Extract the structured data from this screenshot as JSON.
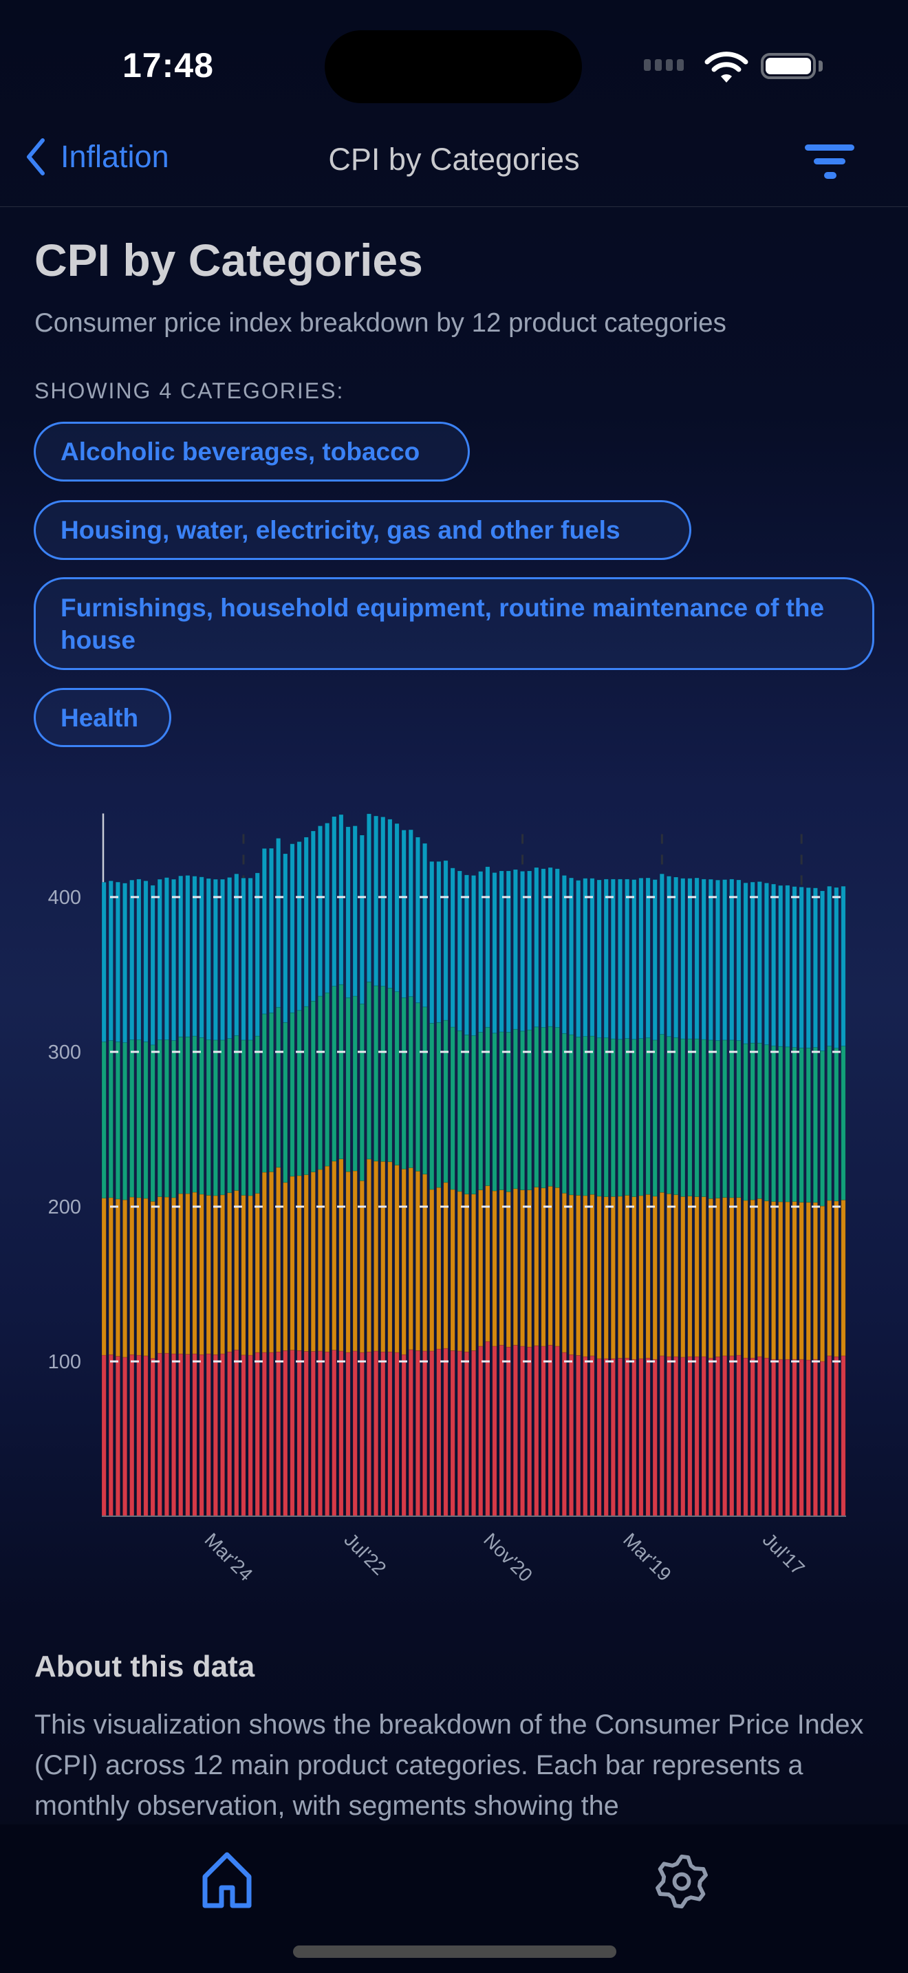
{
  "status_bar": {
    "time": "17:48"
  },
  "nav": {
    "back_label": "Inflation",
    "title": "CPI by Categories"
  },
  "header": {
    "title": "CPI by Categories",
    "subtitle": "Consumer price index breakdown by 12 product categories",
    "showing_label": "SHOWING 4 CATEGORIES:"
  },
  "about": {
    "heading": "About this data",
    "text": "This visualization shows the breakdown of the Consumer Price Index (CPI) across 12 main product categories. Each bar represents a monthly observation, with segments showing the"
  },
  "tabs": [
    {
      "icon": "home-icon",
      "active": true
    },
    {
      "icon": "gear-icon",
      "active": false
    }
  ],
  "colors": {
    "accent": "#3b82f6",
    "text_muted": "#9aa3b5"
  },
  "chart_data": {
    "type": "bar",
    "stacked": true,
    "order": "newest-first",
    "ylim": [
      0,
      454
    ],
    "yticks": [
      "100",
      "200",
      "300",
      "400"
    ],
    "ytick_values": [
      100,
      200,
      300,
      400
    ],
    "grid": true,
    "xticks": [
      {
        "label": "Mar'24",
        "index": 20
      },
      {
        "label": "Jul'22",
        "index": 40
      },
      {
        "label": "Nov'20",
        "index": 60
      },
      {
        "label": "Mar'19",
        "index": 80
      },
      {
        "label": "Jul'17",
        "index": 100
      }
    ],
    "series": [
      {
        "name": "Alcoholic beverages, tobacco",
        "color": "#d63a48",
        "values": [
          104.0,
          104.4,
          103.3,
          102.7,
          104.4,
          104.0,
          103.6,
          102.0,
          105.3,
          105.3,
          104.9,
          104.9,
          104.6,
          104.9,
          104.4,
          104.9,
          104.4,
          104.9,
          106.2,
          107.4,
          104.1,
          104.0,
          105.8,
          105.8,
          105.8,
          106.2,
          107.0,
          107.3,
          107.0,
          106.5,
          106.5,
          106.7,
          106.2,
          107.3,
          106.7,
          105.8,
          106.7,
          105.8,
          106.2,
          106.7,
          106.2,
          106.2,
          105.8,
          104.4,
          107.6,
          107.0,
          106.7,
          106.7,
          108.0,
          108.4,
          107.0,
          106.7,
          106.2,
          107.0,
          109.8,
          112.9,
          109.8,
          110.5,
          109.3,
          110.5,
          109.8,
          109.3,
          110.2,
          109.8,
          110.5,
          109.8,
          105.8,
          104.4,
          103.9,
          103.1,
          103.6,
          101.8,
          101.8,
          101.8,
          102.1,
          102.2,
          101.3,
          101.8,
          102.2,
          101.3,
          103.6,
          103.1,
          103.1,
          102.7,
          103.1,
          103.1,
          103.1,
          102.2,
          103.0,
          103.6,
          103.6,
          104.0,
          102.2,
          102.2,
          103.1,
          102.2,
          101.3,
          101.3,
          101.3,
          101.3,
          101.3,
          100.9,
          101.3,
          100.0,
          103.6,
          103.1,
          103.6
        ]
      },
      {
        "name": "Housing, water, electricity, gas and other fuels",
        "color": "#d4880f",
        "values": [
          101.5,
          101.4,
          101.6,
          101.7,
          101.8,
          101.8,
          101.7,
          101.4,
          101.1,
          100.9,
          100.9,
          103.5,
          103.8,
          104.4,
          103.6,
          102.4,
          102.7,
          102.7,
          102.8,
          103.0,
          103.2,
          103.1,
          102.8,
          116.4,
          116.7,
          119.2,
          108.6,
          112.3,
          113.0,
          114.1,
          115.9,
          117.3,
          120.0,
          122.1,
          124.1,
          116.8,
          116.4,
          110.9,
          124.5,
          122.7,
          123.0,
          122.8,
          121.0,
          119.9,
          117.5,
          115.9,
          114.3,
          104.4,
          104.4,
          107.2,
          104.1,
          103.1,
          101.9,
          101.1,
          101.0,
          100.6,
          100.4,
          100.3,
          100.3,
          101.1,
          101.0,
          101.5,
          102.4,
          102.3,
          102.7,
          102.5,
          102.9,
          103.2,
          103.4,
          104.0,
          104.3,
          104.9,
          104.6,
          104.7,
          104.6,
          105.1,
          105.1,
          105.3,
          105.7,
          105.4,
          105.6,
          105.2,
          104.6,
          103.8,
          103.7,
          103.3,
          103.3,
          103.0,
          102.5,
          102.3,
          102.2,
          101.9,
          101.8,
          102.2,
          102.1,
          101.5,
          102.0,
          101.8,
          101.8,
          102.0,
          101.5,
          101.9,
          101.4,
          100.4,
          100.4,
          100.5,
          100.7
        ]
      },
      {
        "name": "Furnishings, household equipment, routine maintenance of the house",
        "color": "#12a07a",
        "values": [
          101.0,
          101.5,
          101.6,
          101.6,
          101.6,
          102.0,
          101.2,
          101.1,
          101.4,
          101.6,
          101.5,
          101.3,
          101.3,
          100.9,
          101.2,
          100.5,
          100.5,
          100.0,
          99.6,
          100.1,
          100.3,
          100.5,
          101.6,
          102.3,
          102.7,
          103.4,
          103.4,
          105.7,
          106.8,
          108.7,
          110.4,
          112.0,
          112.0,
          113.0,
          112.7,
          112.4,
          112.9,
          114.3,
          114.5,
          113.3,
          113.2,
          112.2,
          112.1,
          110.7,
          110.6,
          108.8,
          108.0,
          107.4,
          106.6,
          104.8,
          104.9,
          103.9,
          102.9,
          102.4,
          101.9,
          102.4,
          101.9,
          102.1,
          103.1,
          103.0,
          102.6,
          103.4,
          103.5,
          103.7,
          103.2,
          103.5,
          103.2,
          103.5,
          102.3,
          102.9,
          102.3,
          102.4,
          102.7,
          101.9,
          101.4,
          101.3,
          101.7,
          101.5,
          101.2,
          100.9,
          102.1,
          101.6,
          101.5,
          101.9,
          101.6,
          102.0,
          101.6,
          102.4,
          101.8,
          101.7,
          101.8,
          101.4,
          101.3,
          101.3,
          100.5,
          100.9,
          100.5,
          100.4,
          100.1,
          99.6,
          99.7,
          99.7,
          100.2,
          100.2,
          99.7,
          98.8,
          99.4
        ]
      },
      {
        "name": "Health",
        "color": "#0a9cc0",
        "values": [
          103.1,
          103.2,
          103.2,
          103.0,
          103.2,
          103.8,
          104.0,
          103.1,
          103.7,
          104.8,
          104.2,
          104.0,
          104.3,
          103.3,
          103.8,
          104.2,
          103.9,
          103.9,
          104.1,
          104.5,
          104.7,
          104.7,
          105.4,
          106.9,
          106.3,
          109.2,
          109.0,
          109.1,
          109.0,
          109.4,
          109.9,
          110.0,
          109.6,
          109.6,
          109.8,
          110.4,
          110.0,
          109.0,
          108.6,
          109.7,
          109.4,
          109.1,
          108.6,
          108.3,
          107.8,
          107.0,
          105.7,
          104.5,
          104.0,
          103.2,
          102.8,
          103.2,
          103.3,
          103.5,
          103.9,
          103.7,
          103.7,
          104.0,
          104.2,
          103.2,
          103.3,
          102.7,
          103.0,
          102.5,
          102.7,
          102.5,
          102.1,
          101.3,
          101.2,
          102.1,
          101.9,
          102.0,
          102.5,
          103.2,
          103.5,
          103.0,
          103.2,
          103.7,
          103.3,
          103.7,
          103.7,
          103.6,
          103.7,
          103.7,
          103.7,
          104.0,
          103.6,
          103.9,
          103.7,
          103.7,
          104.0,
          103.8,
          103.9,
          104.0,
          104.3,
          104.5,
          104.6,
          104.0,
          104.4,
          103.9,
          104.0,
          103.6,
          103.0,
          103.4,
          103.3,
          103.8,
          103.3
        ]
      }
    ]
  }
}
